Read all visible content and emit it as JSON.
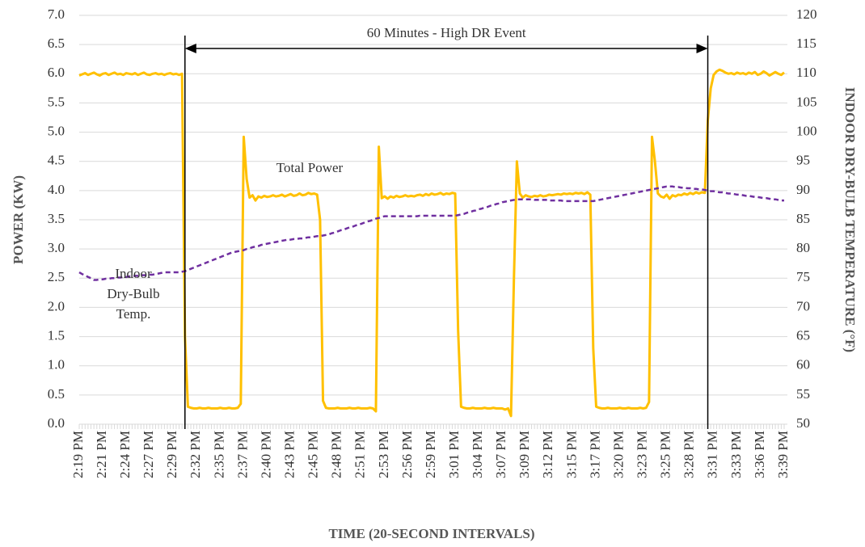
{
  "chart_data": {
    "type": "line",
    "yaxis_label": "POWER (KW)",
    "y2axis_label": "INDOOR DRY-BULB TEMPERATURE (°F)",
    "xaxis_label": "TIME (20-SECOND INTERVALS)",
    "grid": true,
    "ylim": [
      0,
      7
    ],
    "yticks": [
      {
        "value": 0,
        "label": "0.0"
      },
      0.5,
      {
        "value": 1,
        "label": "1.0"
      },
      1.5,
      {
        "value": 2,
        "label": "2.0"
      },
      2.5,
      {
        "value": 3,
        "label": "3.0"
      },
      3.5,
      {
        "value": 4,
        "label": "4.0"
      },
      4.5,
      {
        "value": 5,
        "label": "5.0"
      },
      5.5,
      {
        "value": 6,
        "label": "6.0"
      },
      6.5,
      {
        "value": 7,
        "label": "7.0"
      }
    ],
    "y2lim": [
      50,
      120
    ],
    "y2ticks": [
      50,
      55,
      60,
      65,
      70,
      75,
      80,
      85,
      90,
      95,
      100,
      105,
      110,
      115,
      120
    ],
    "categories": [
      "2:19 PM",
      null,
      null,
      null,
      null,
      null,
      null,
      null,
      "2:21 PM",
      null,
      null,
      null,
      null,
      null,
      null,
      null,
      "2:24 PM",
      null,
      null,
      null,
      null,
      null,
      null,
      null,
      "2:27 PM",
      null,
      null,
      null,
      null,
      null,
      null,
      null,
      "2:29 PM",
      null,
      null,
      null,
      null,
      null,
      null,
      null,
      "2:32 PM",
      null,
      null,
      null,
      null,
      null,
      null,
      null,
      "2:35 PM",
      null,
      null,
      null,
      null,
      null,
      null,
      null,
      "2:37 PM",
      null,
      null,
      null,
      null,
      null,
      null,
      null,
      "2:40 PM",
      null,
      null,
      null,
      null,
      null,
      null,
      null,
      "2:43 PM",
      null,
      null,
      null,
      null,
      null,
      null,
      null,
      "2:45 PM",
      null,
      null,
      null,
      null,
      null,
      null,
      null,
      "2:48 PM",
      null,
      null,
      null,
      null,
      null,
      null,
      null,
      "2:51 PM",
      null,
      null,
      null,
      null,
      null,
      null,
      null,
      "2:53 PM",
      null,
      null,
      null,
      null,
      null,
      null,
      null,
      "2:56 PM",
      null,
      null,
      null,
      null,
      null,
      null,
      null,
      "2:59 PM",
      null,
      null,
      null,
      null,
      null,
      null,
      null,
      "3:01 PM",
      null,
      null,
      null,
      null,
      null,
      null,
      null,
      "3:04 PM",
      null,
      null,
      null,
      null,
      null,
      null,
      null,
      "3:07 PM",
      null,
      null,
      null,
      null,
      null,
      null,
      null,
      "3:09 PM",
      null,
      null,
      null,
      null,
      null,
      null,
      null,
      "3:12 PM",
      null,
      null,
      null,
      null,
      null,
      null,
      null,
      "3:15 PM",
      null,
      null,
      null,
      null,
      null,
      null,
      null,
      "3:17 PM",
      null,
      null,
      null,
      null,
      null,
      null,
      null,
      "3:20 PM",
      null,
      null,
      null,
      null,
      null,
      null,
      null,
      "3:23 PM",
      null,
      null,
      null,
      null,
      null,
      null,
      null,
      "3:25 PM",
      null,
      null,
      null,
      null,
      null,
      null,
      null,
      "3:28 PM",
      null,
      null,
      null,
      null,
      null,
      null,
      null,
      "3:31 PM",
      null,
      null,
      null,
      null,
      null,
      null,
      null,
      "3:33 PM",
      null,
      null,
      null,
      null,
      null,
      null,
      null,
      "3:36 PM",
      null,
      null,
      null,
      null,
      null,
      null,
      null,
      "3:39 PM"
    ],
    "series": [
      {
        "name": "Total Power",
        "color": "#FFC000",
        "axis": "y",
        "values": [
          5.97,
          5.99,
          6.01,
          5.98,
          6.0,
          6.02,
          5.99,
          5.97,
          6.0,
          6.01,
          5.98,
          6.0,
          6.02,
          5.99,
          6.0,
          5.98,
          6.01,
          6.0,
          5.99,
          6.01,
          5.98,
          6.0,
          6.02,
          5.99,
          5.98,
          6.0,
          6.01,
          5.99,
          6.0,
          5.98,
          6.0,
          6.01,
          5.99,
          6.0,
          5.98,
          6.0,
          1.5,
          0.3,
          0.28,
          0.27,
          0.27,
          0.28,
          0.27,
          0.27,
          0.28,
          0.27,
          0.27,
          0.27,
          0.28,
          0.27,
          0.27,
          0.28,
          0.27,
          0.27,
          0.28,
          0.35,
          4.92,
          4.2,
          3.88,
          3.92,
          3.83,
          3.9,
          3.88,
          3.91,
          3.89,
          3.9,
          3.92,
          3.9,
          3.91,
          3.93,
          3.9,
          3.92,
          3.94,
          3.91,
          3.92,
          3.95,
          3.92,
          3.93,
          3.96,
          3.94,
          3.95,
          3.93,
          3.5,
          0.4,
          0.28,
          0.27,
          0.27,
          0.27,
          0.28,
          0.27,
          0.27,
          0.27,
          0.28,
          0.27,
          0.27,
          0.28,
          0.27,
          0.27,
          0.27,
          0.28,
          0.27,
          0.22,
          4.75,
          3.87,
          3.9,
          3.86,
          3.9,
          3.88,
          3.91,
          3.89,
          3.9,
          3.92,
          3.9,
          3.91,
          3.9,
          3.92,
          3.93,
          3.91,
          3.94,
          3.92,
          3.95,
          3.93,
          3.94,
          3.96,
          3.93,
          3.95,
          3.94,
          3.96,
          3.95,
          1.6,
          0.3,
          0.28,
          0.27,
          0.27,
          0.28,
          0.27,
          0.27,
          0.27,
          0.28,
          0.27,
          0.27,
          0.28,
          0.27,
          0.27,
          0.27,
          0.25,
          0.27,
          0.14,
          2.5,
          4.5,
          3.95,
          3.88,
          3.92,
          3.9,
          3.89,
          3.91,
          3.9,
          3.92,
          3.9,
          3.91,
          3.93,
          3.92,
          3.93,
          3.94,
          3.93,
          3.95,
          3.94,
          3.95,
          3.94,
          3.96,
          3.95,
          3.96,
          3.94,
          3.97,
          3.93,
          1.3,
          0.3,
          0.28,
          0.27,
          0.27,
          0.28,
          0.27,
          0.27,
          0.27,
          0.28,
          0.27,
          0.27,
          0.28,
          0.27,
          0.27,
          0.27,
          0.28,
          0.27,
          0.28,
          0.38,
          4.92,
          4.5,
          3.95,
          3.9,
          3.88,
          3.93,
          3.86,
          3.92,
          3.9,
          3.93,
          3.92,
          3.95,
          3.93,
          3.96,
          3.94,
          3.97,
          3.95,
          3.97,
          3.96,
          5.2,
          5.75,
          5.98,
          6.04,
          6.07,
          6.05,
          6.02,
          6.0,
          6.01,
          5.99,
          6.02,
          6.0,
          6.01,
          5.99,
          6.02,
          6.0,
          6.03,
          5.98,
          6.0,
          6.04,
          6.01,
          5.97,
          6.0,
          6.03,
          6.0,
          5.98,
          6.02
        ]
      },
      {
        "name": "Indoor Dry-Bulb Temp.",
        "color": "#7030A0",
        "axis": "y2",
        "dashed": true,
        "values": [
          76.0,
          75.7,
          75.5,
          75.2,
          75.0,
          74.7,
          74.7,
          74.8,
          74.8,
          74.9,
          74.9,
          75.0,
          75.0,
          75.1,
          75.1,
          75.2,
          75.2,
          75.3,
          75.3,
          75.4,
          75.4,
          75.5,
          75.5,
          75.5,
          75.6,
          75.6,
          75.7,
          75.8,
          75.9,
          76.0,
          76.0,
          76.0,
          76.0,
          76.0,
          76.0,
          76.1,
          76.2,
          76.4,
          76.6,
          76.8,
          77.0,
          77.2,
          77.4,
          77.6,
          77.8,
          78.0,
          78.2,
          78.4,
          78.6,
          78.8,
          79.0,
          79.2,
          79.4,
          79.5,
          79.6,
          79.7,
          79.8,
          80.0,
          80.1,
          80.3,
          80.4,
          80.5,
          80.7,
          80.8,
          80.9,
          81.0,
          81.1,
          81.2,
          81.3,
          81.4,
          81.5,
          81.6,
          81.6,
          81.7,
          81.7,
          81.8,
          81.8,
          81.9,
          82.0,
          82.0,
          82.1,
          82.2,
          82.2,
          82.3,
          82.4,
          82.5,
          82.7,
          82.8,
          83.0,
          83.2,
          83.3,
          83.5,
          83.7,
          83.8,
          84.0,
          84.2,
          84.3,
          84.5,
          84.7,
          84.8,
          85.0,
          85.2,
          85.3,
          85.5,
          85.6,
          85.6,
          85.6,
          85.6,
          85.6,
          85.6,
          85.6,
          85.6,
          85.6,
          85.6,
          85.6,
          85.6,
          85.7,
          85.7,
          85.7,
          85.7,
          85.7,
          85.7,
          85.7,
          85.7,
          85.7,
          85.7,
          85.7,
          85.7,
          85.7,
          85.8,
          85.9,
          86.0,
          86.2,
          86.3,
          86.5,
          86.6,
          86.8,
          86.9,
          87.1,
          87.2,
          87.4,
          87.5,
          87.7,
          87.8,
          88.0,
          88.1,
          88.2,
          88.3,
          88.4,
          88.5,
          88.5,
          88.5,
          88.5,
          88.5,
          88.5,
          88.4,
          88.4,
          88.4,
          88.4,
          88.4,
          88.3,
          88.3,
          88.3,
          88.3,
          88.3,
          88.2,
          88.2,
          88.2,
          88.2,
          88.2,
          88.2,
          88.2,
          88.2,
          88.2,
          88.2,
          88.2,
          88.3,
          88.4,
          88.5,
          88.6,
          88.7,
          88.8,
          88.9,
          89.0,
          89.1,
          89.2,
          89.3,
          89.4,
          89.5,
          89.6,
          89.7,
          89.8,
          89.9,
          90.0,
          90.1,
          90.2,
          90.3,
          90.4,
          90.5,
          90.6,
          90.7,
          90.7,
          90.7,
          90.6,
          90.6,
          90.5,
          90.5,
          90.4,
          90.4,
          90.3,
          90.3,
          90.2,
          90.2,
          90.1,
          90.0,
          89.9,
          89.9,
          89.8,
          89.7,
          89.7,
          89.6,
          89.5,
          89.5,
          89.4,
          89.3,
          89.3,
          89.2,
          89.1,
          89.1,
          89.0,
          88.9,
          88.9,
          88.8,
          88.7,
          88.7,
          88.6,
          88.5,
          88.5,
          88.4,
          88.3,
          88.3
        ]
      }
    ],
    "event": {
      "label": "60 Minutes - High DR Event",
      "start": 36,
      "end": 214
    },
    "annotations": [
      {
        "lines": [
          "Total Power"
        ]
      },
      {
        "lines": [
          "Indoor",
          "Dry-Bulb",
          "Temp."
        ]
      }
    ]
  }
}
